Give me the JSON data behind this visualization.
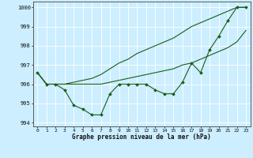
{
  "xlabel": "Graphe pression niveau de la mer (hPa)",
  "ylim": [
    993.8,
    1000.3
  ],
  "xlim": [
    -0.5,
    23.5
  ],
  "yticks": [
    994,
    995,
    996,
    997,
    998,
    999,
    1000
  ],
  "xticks": [
    0,
    1,
    2,
    3,
    4,
    5,
    6,
    7,
    8,
    9,
    10,
    11,
    12,
    13,
    14,
    15,
    16,
    17,
    18,
    19,
    20,
    21,
    22,
    23
  ],
  "bg_color": "#cceeff",
  "grid_color": "#aadddd",
  "line_color": "#1a5c1a",
  "line1_x": [
    0,
    1,
    2,
    3,
    4,
    5,
    6,
    7,
    8,
    9,
    10,
    11,
    12,
    13,
    14,
    15,
    16,
    17,
    18,
    19,
    20,
    21,
    22,
    23
  ],
  "line1_y": [
    996.6,
    996.0,
    996.0,
    995.7,
    994.9,
    994.7,
    994.4,
    994.4,
    995.5,
    996.0,
    996.0,
    996.0,
    996.0,
    995.7,
    995.5,
    995.5,
    996.1,
    997.1,
    996.6,
    997.8,
    998.5,
    999.3,
    1000.0,
    1000.0
  ],
  "line2_x": [
    0,
    1,
    2,
    3,
    4,
    5,
    6,
    7,
    8,
    9,
    10,
    11,
    12,
    13,
    14,
    15,
    16,
    17,
    18,
    19,
    20,
    21,
    22,
    23
  ],
  "line2_y": [
    996.6,
    996.0,
    996.0,
    996.0,
    996.0,
    996.0,
    996.0,
    996.0,
    996.1,
    996.2,
    996.3,
    996.4,
    996.5,
    996.6,
    996.7,
    996.8,
    997.0,
    997.1,
    997.3,
    997.5,
    997.7,
    997.9,
    998.2,
    998.8
  ],
  "line3_x": [
    0,
    1,
    2,
    3,
    4,
    5,
    6,
    7,
    8,
    9,
    10,
    11,
    12,
    13,
    14,
    15,
    16,
    17,
    18,
    19,
    20,
    21,
    22,
    23
  ],
  "line3_y": [
    996.6,
    996.0,
    996.0,
    996.0,
    996.1,
    996.2,
    996.3,
    996.5,
    996.8,
    997.1,
    997.3,
    997.6,
    997.8,
    998.0,
    998.2,
    998.4,
    998.7,
    999.0,
    999.2,
    999.4,
    999.6,
    999.8,
    1000.0,
    1000.0
  ]
}
